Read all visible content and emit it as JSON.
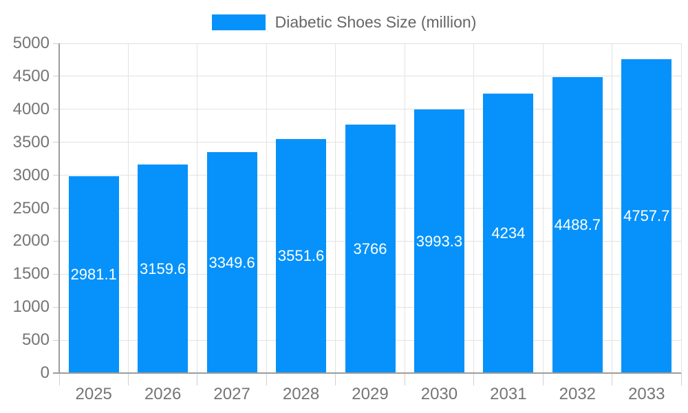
{
  "legend": {
    "label": "Diabetic Shoes Size (million)"
  },
  "chart_data": {
    "type": "bar",
    "title": "Diabetic Shoes Size (million)",
    "xlabel": "",
    "ylabel": "",
    "categories": [
      "2025",
      "2026",
      "2027",
      "2028",
      "2029",
      "2030",
      "2031",
      "2032",
      "2033"
    ],
    "values": [
      2981.1,
      3159.6,
      3349.6,
      3551.6,
      3766,
      3993.3,
      4234,
      4488.7,
      4757.7
    ],
    "value_labels": [
      "2981.1",
      "3159.6",
      "3349.6",
      "3551.6",
      "3766",
      "3993.3",
      "4234",
      "4488.7",
      "4757.7"
    ],
    "ylim": [
      0,
      5000
    ],
    "y_ticks": [
      0,
      500,
      1000,
      1500,
      2000,
      2500,
      3000,
      3500,
      4000,
      4500,
      5000
    ],
    "y_tick_labels": [
      "0",
      "500",
      "1000",
      "1500",
      "2000",
      "2500",
      "3000",
      "3500",
      "4000",
      "4500",
      "5000"
    ],
    "grid": true,
    "legend_position": "top-center",
    "value_label_position": "inside-center",
    "colors": {
      "bar": "#0692fa",
      "grid": "#e2e2e2",
      "axis": "#9c9c9c",
      "tick": "#cfcfcf",
      "axis_label": "#757575",
      "legend_text": "#666666",
      "value_label": "#ffffff",
      "background": "#ffffff"
    }
  }
}
